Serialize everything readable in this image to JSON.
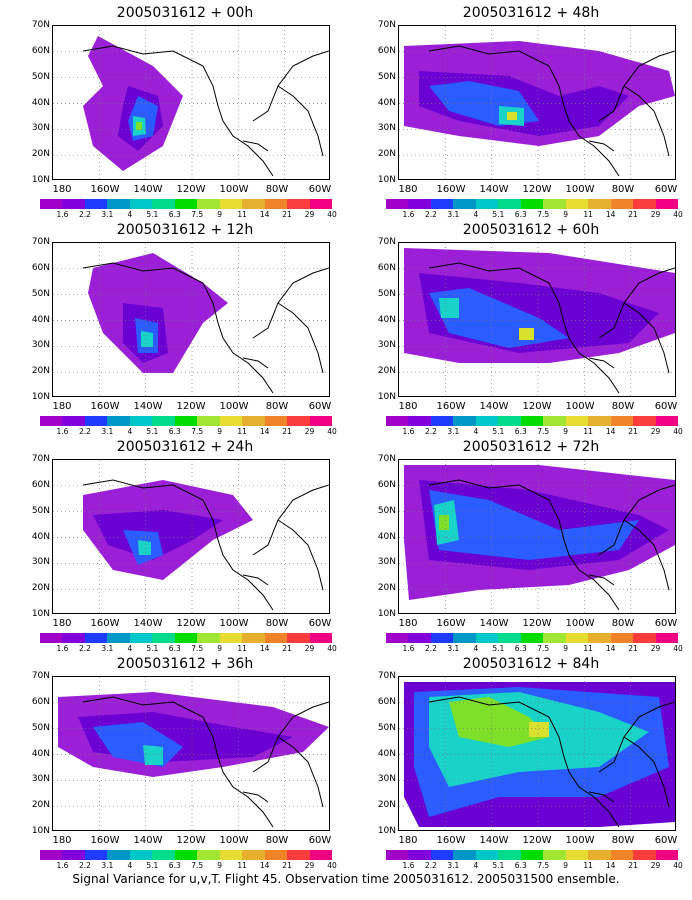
{
  "panels": [
    {
      "title": "2005031612 + 00h"
    },
    {
      "title": "2005031612 + 48h"
    },
    {
      "title": "2005031612 + 12h"
    },
    {
      "title": "2005031612 + 60h"
    },
    {
      "title": "2005031612 + 24h"
    },
    {
      "title": "2005031612 + 72h"
    },
    {
      "title": "2005031612 + 36h"
    },
    {
      "title": "2005031612 + 84h"
    }
  ],
  "y_ticks": [
    "70N",
    "60N",
    "50N",
    "40N",
    "30N",
    "20N",
    "10N"
  ],
  "x_ticks": [
    "180",
    "160W",
    "140W",
    "120W",
    "100W",
    "80W",
    "60W"
  ],
  "colorbar": {
    "labels": [
      "1.6",
      "2.2",
      "3.1",
      "4",
      "5.1",
      "6.3",
      "7.5",
      "9",
      "11",
      "14",
      "21",
      "29",
      "40"
    ],
    "colors": [
      "#a000c8",
      "#8200dc",
      "#1e3cff",
      "#0096c8",
      "#00c8c8",
      "#00dc8c",
      "#00dc00",
      "#a0e632",
      "#e6dc32",
      "#e6af2d",
      "#f08228",
      "#fa3c3c",
      "#f00082"
    ]
  },
  "caption": "Signal Variance for u,v,T. Flight 45. Observation time 2005031612. 2005031500 ensemble."
}
